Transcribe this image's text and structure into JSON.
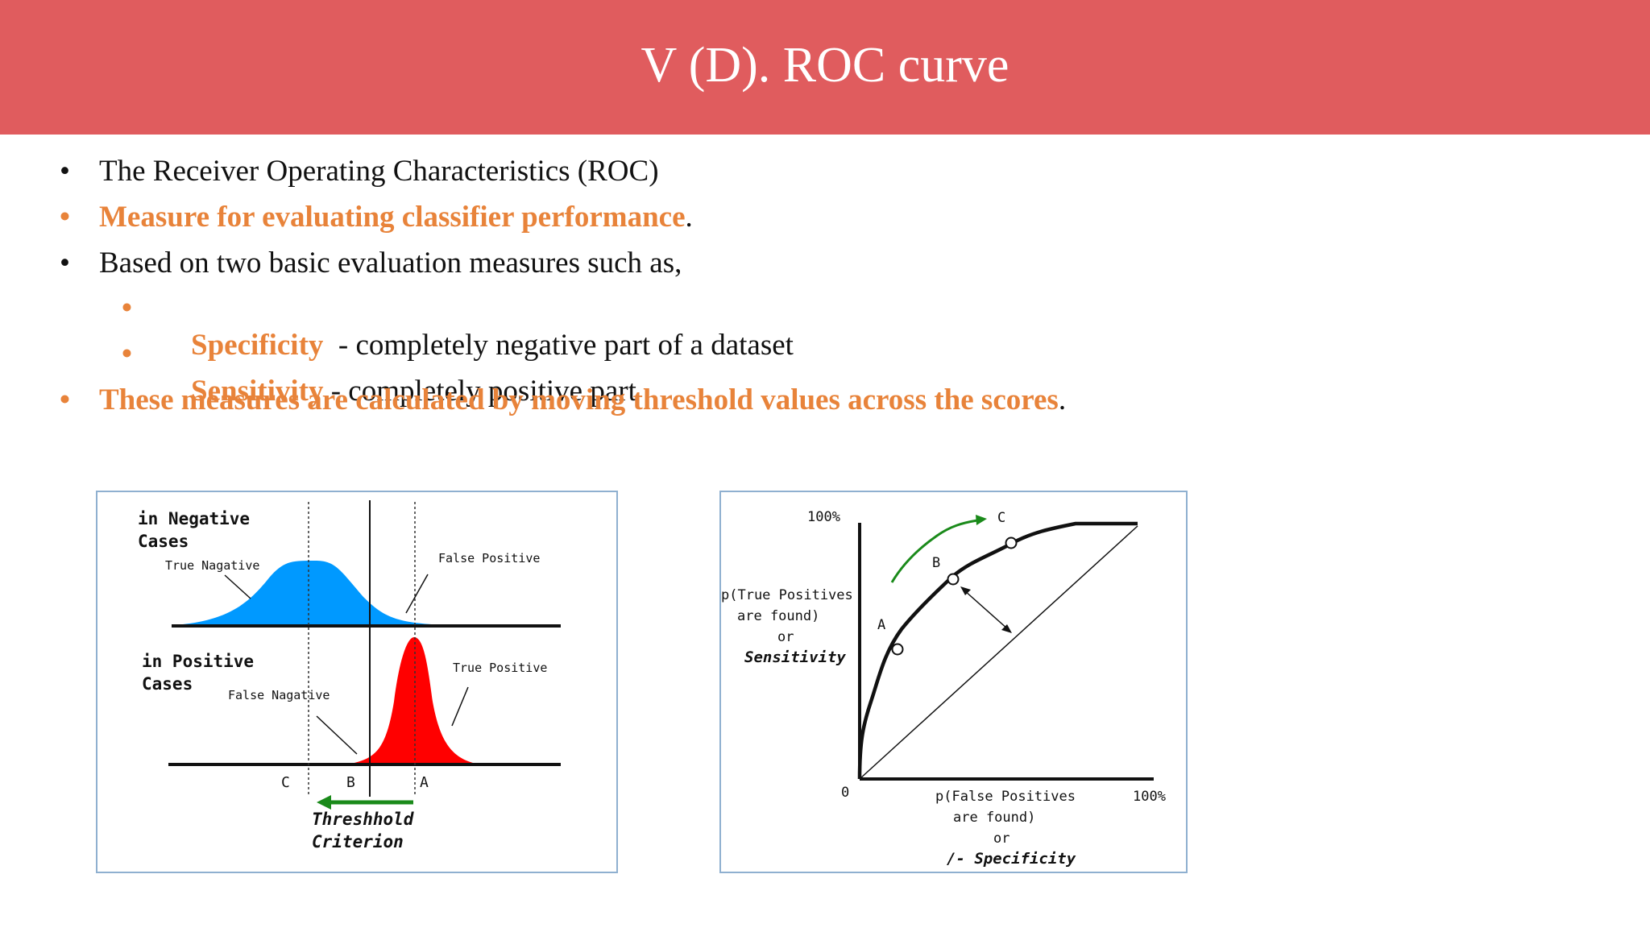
{
  "title": "V (D). ROC curve",
  "bullets": [
    {
      "marker": "•",
      "level": 1,
      "highlight": "",
      "text": "The Receiver Operating Characteristics (ROC)",
      "tail": ""
    },
    {
      "marker": "•",
      "level": 1,
      "highlight": "Measure for evaluating classifier performance",
      "text": "",
      "tail": "."
    },
    {
      "marker": "•",
      "level": 1,
      "highlight": "",
      "text": "Based on two basic evaluation measures such as,",
      "tail": ""
    },
    {
      "marker": "•",
      "level": 2,
      "highlight": "Specificity",
      "text": "  - completely negative part of a dataset",
      "tail": ""
    },
    {
      "marker": "•",
      "level": 2,
      "highlight": "Sensitivity",
      "text": " - completely positive part",
      "tail": ""
    },
    {
      "marker": "•",
      "level": 1,
      "highlight": "These measures are calculated by moving threshold values across the scores",
      "text": "",
      "tail": "."
    }
  ],
  "distribution_figure": {
    "neg_label_1": "in Negative",
    "neg_label_2": "Cases",
    "true_negative": "True Nagative",
    "false_positive": "False Positive",
    "pos_label_1": "in Positive",
    "pos_label_2": "Cases",
    "false_negative": "False Nagative",
    "true_positive": "True Positive",
    "threshold_c": "C",
    "threshold_b": "B",
    "threshold_a": "A",
    "criterion_1": "Threshhold",
    "criterion_2": "Criterion",
    "neg_color": "#0099ff",
    "pos_color": "#ff0000",
    "arrow_color": "#1a8a1a"
  },
  "roc_figure": {
    "y_max": "100%",
    "origin": "0",
    "x_max": "100%",
    "y_label_1": "p(True Positives",
    "y_label_2": "are found)",
    "y_label_3": "or",
    "y_label_4": "Sensitivity",
    "x_label_1": "p(False Positives",
    "x_label_2": "are found)",
    "x_label_3": "or",
    "x_label_4": "/- Specificity",
    "point_a": "A",
    "point_b": "B",
    "point_c": "C",
    "arrow_color": "#1a8a1a"
  },
  "colors": {
    "title_bar": "#e05c5e",
    "highlight": "#e8833a",
    "box_border": "#8fb0d0"
  }
}
